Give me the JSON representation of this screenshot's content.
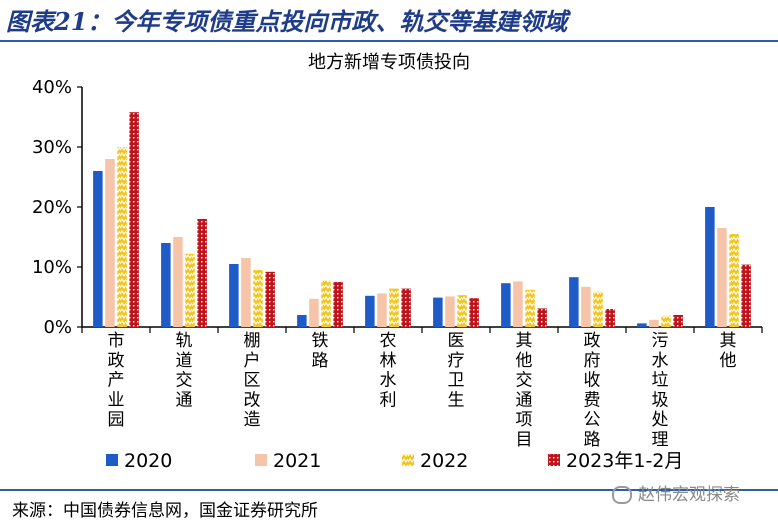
{
  "figure": {
    "title": "图表21：今年专项债重点投向市政、轨交等基建领域",
    "source": "来源：中国债券信息网，国金证券研究所",
    "watermark": "赵伟宏观探索",
    "watermark_icon": "wechat-icon"
  },
  "chart_data": {
    "type": "bar",
    "title": "地方新增专项债投向",
    "categories": [
      "市政产业园",
      "轨道交通",
      "棚户区改造",
      "铁路",
      "农林水利",
      "医疗卫生",
      "其他交通项目",
      "政府收费公路",
      "污水垃圾处理",
      "其他"
    ],
    "series": [
      {
        "name": "2020",
        "values": [
          26.0,
          14.0,
          10.5,
          2.0,
          5.2,
          4.9,
          7.3,
          8.3,
          0.6,
          20.0
        ],
        "color": "#1f5bc6",
        "pattern": "solid"
      },
      {
        "name": "2021",
        "values": [
          28.0,
          15.0,
          11.5,
          4.7,
          5.6,
          5.1,
          7.6,
          6.7,
          1.2,
          16.5
        ],
        "color": "#f6c4a8",
        "pattern": "solid"
      },
      {
        "name": "2022",
        "values": [
          30.0,
          12.2,
          9.5,
          7.8,
          6.4,
          5.3,
          6.2,
          5.9,
          1.9,
          15.5
        ],
        "color": "#f5c418",
        "pattern": "zigzag"
      },
      {
        "name": "2023年1-2月",
        "values": [
          35.8,
          18.0,
          9.2,
          7.5,
          6.4,
          4.8,
          3.1,
          3.0,
          2.0,
          10.4
        ],
        "color": "#c0141c",
        "pattern": "dots"
      }
    ],
    "ylim": [
      0,
      40
    ],
    "yticks": [
      "0%",
      "10%",
      "20%",
      "30%",
      "40%"
    ],
    "ytick_values": [
      0,
      10,
      20,
      30,
      40
    ],
    "grid": false,
    "legend_position": "bottom"
  }
}
